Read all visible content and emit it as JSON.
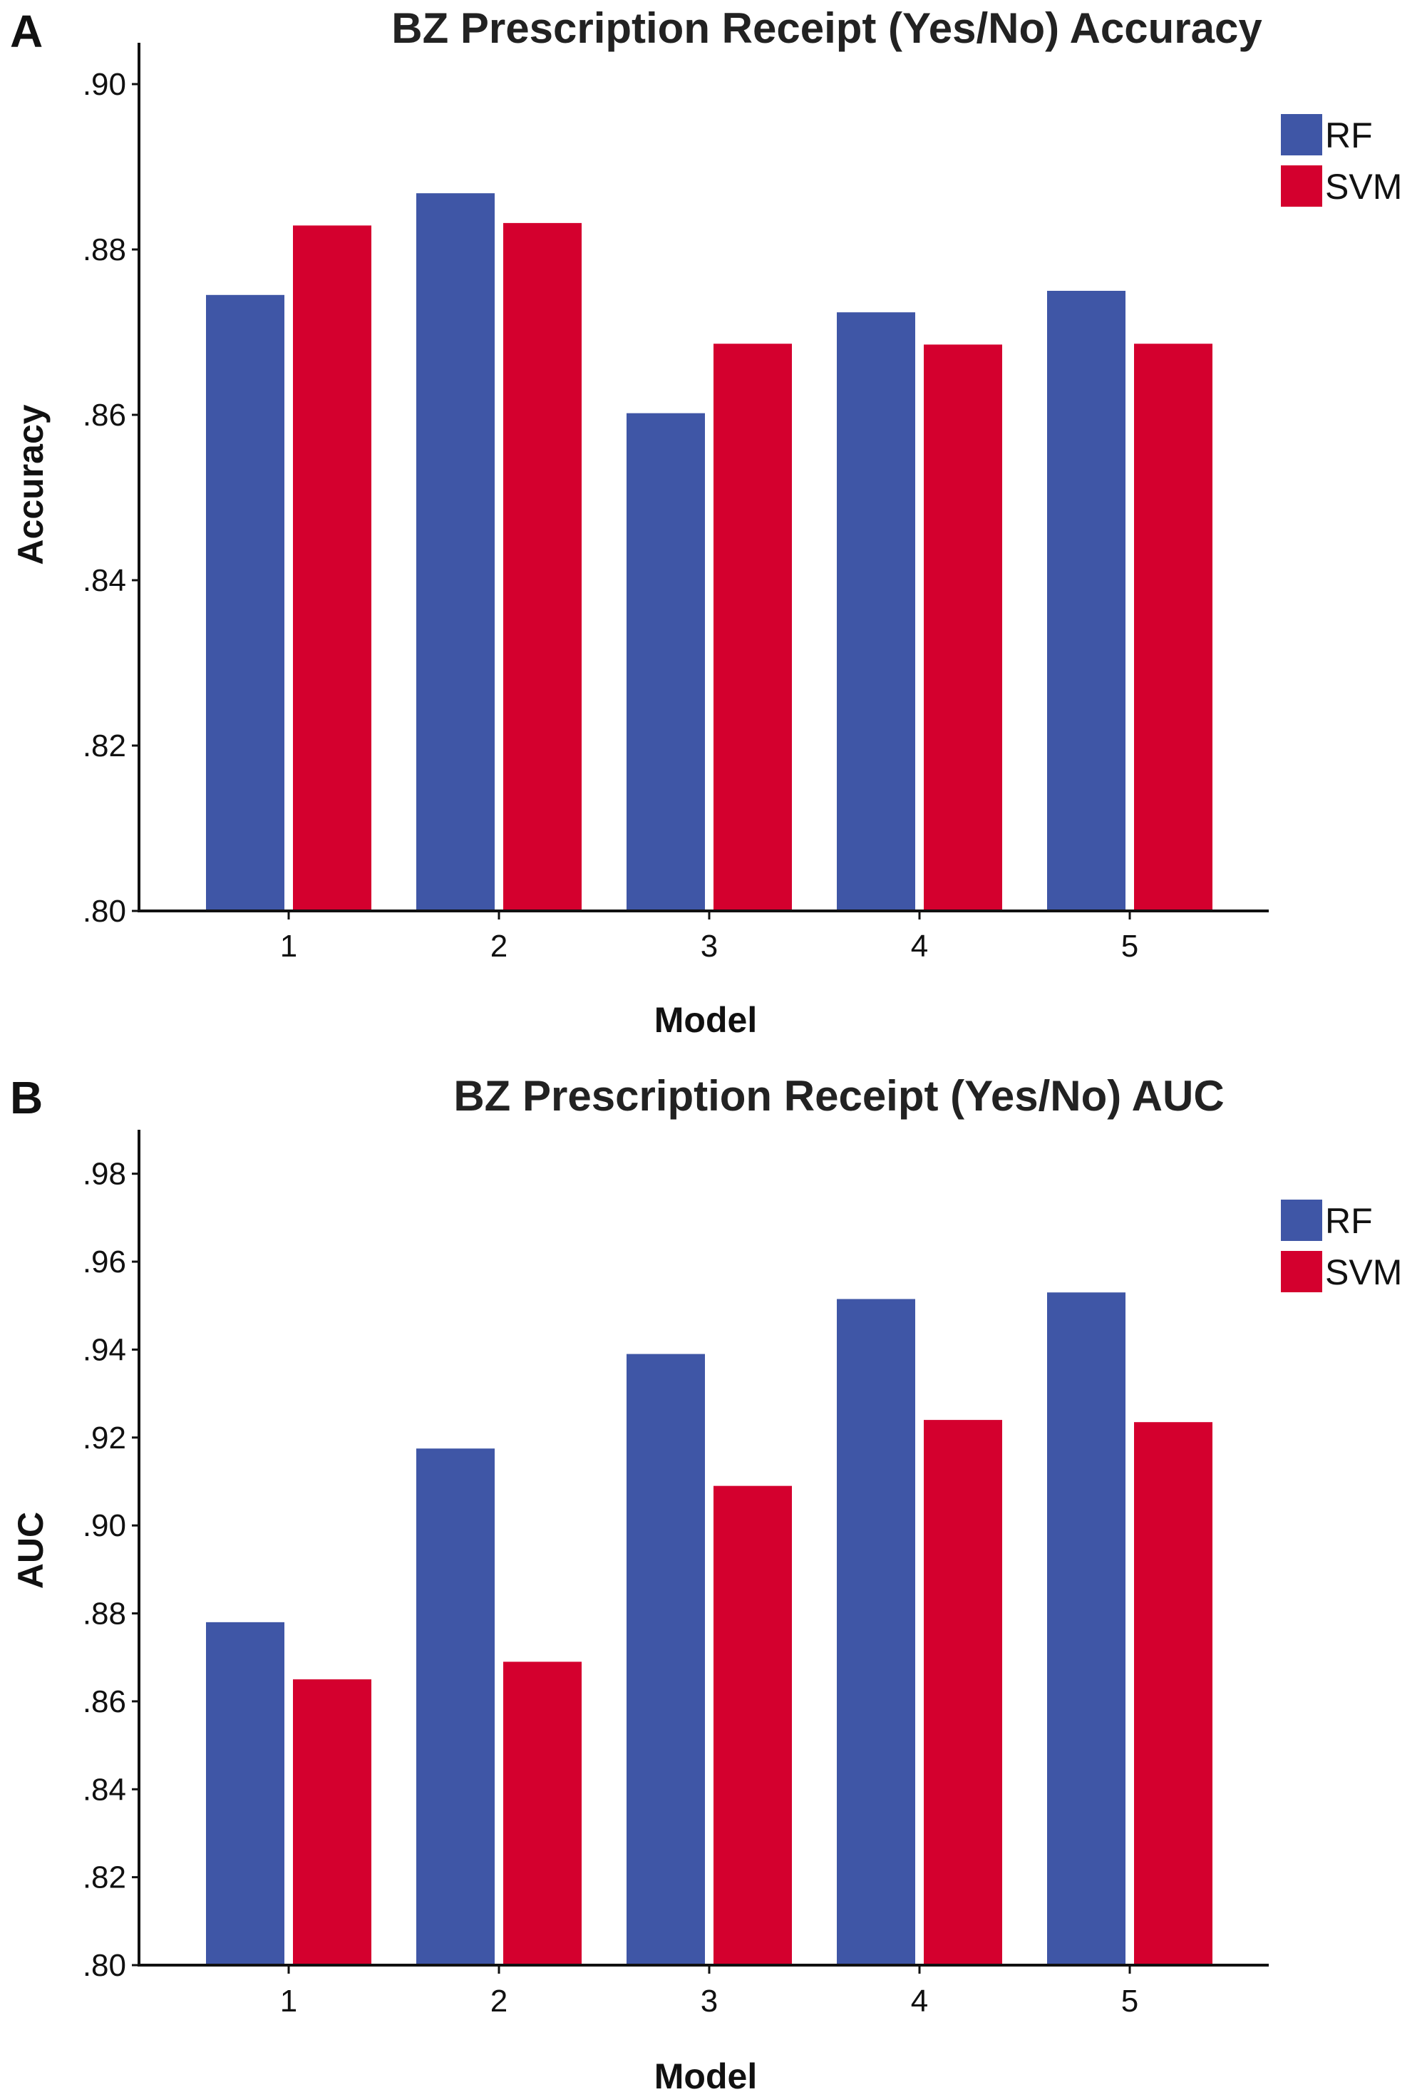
{
  "colors": {
    "RF": "#3f56a6",
    "SVM": "#d4002e",
    "axis": "#111111"
  },
  "chart_data": [
    {
      "type": "bar",
      "panel": "A",
      "title": "BZ Prescription Receipt (Yes/No) Accuracy",
      "xlabel": "Model",
      "ylabel": "Accuracy",
      "categories": [
        "1",
        "2",
        "3",
        "4",
        "5"
      ],
      "ylim": [
        0.8,
        0.905
      ],
      "yticks": [
        0.8,
        0.82,
        0.84,
        0.86,
        0.88,
        0.9
      ],
      "ytick_labels": [
        ".80",
        ".82",
        ".84",
        ".86",
        ".88",
        ".90"
      ],
      "legend_position": "top-right",
      "series": [
        {
          "name": "RF",
          "values": [
            0.8745,
            0.8868,
            0.8602,
            0.8724,
            0.875
          ]
        },
        {
          "name": "SVM",
          "values": [
            0.8829,
            0.8832,
            0.8686,
            0.8685,
            0.8686
          ]
        }
      ]
    },
    {
      "type": "bar",
      "panel": "B",
      "title": "BZ Prescription Receipt (Yes/No) AUC",
      "xlabel": "Model",
      "ylabel": "AUC",
      "categories": [
        "1",
        "2",
        "3",
        "4",
        "5"
      ],
      "ylim": [
        0.8,
        0.99
      ],
      "yticks": [
        0.8,
        0.82,
        0.84,
        0.86,
        0.88,
        0.9,
        0.92,
        0.94,
        0.96,
        0.98
      ],
      "ytick_labels": [
        ".80",
        ".82",
        ".84",
        ".86",
        ".88",
        ".90",
        ".92",
        ".94",
        ".96",
        ".98"
      ],
      "legend_position": "top-right",
      "series": [
        {
          "name": "RF",
          "values": [
            0.878,
            0.9175,
            0.939,
            0.9515,
            0.953
          ]
        },
        {
          "name": "SVM",
          "values": [
            0.865,
            0.869,
            0.909,
            0.924,
            0.9235
          ]
        }
      ]
    }
  ]
}
